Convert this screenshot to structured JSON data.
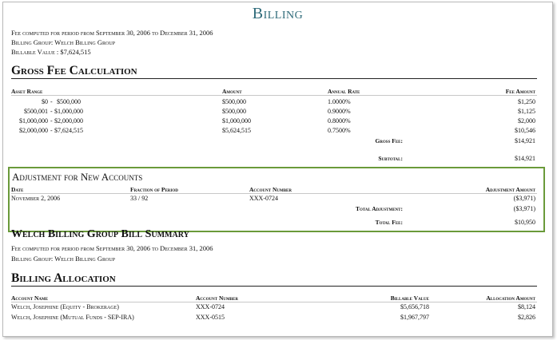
{
  "title": "Billing",
  "header_info": {
    "period": "Fee computed for period from September 30, 2006 to December 31, 2006",
    "group": "Billing Group: Welch Billing Group",
    "billable_value": "Billable Value : $7,624,515"
  },
  "gross": {
    "heading": "Gross Fee Calculation",
    "columns": [
      "Asset Range",
      "Amount",
      "Annual Rate",
      "Fee Amount"
    ],
    "rows": [
      {
        "range_from": "$0",
        "range_dash": "-",
        "range_to": "$500,000",
        "amount": "$500,000",
        "rate": "1.0000%",
        "fee": "$1,250"
      },
      {
        "range_from": "$500,001",
        "range_dash": "-",
        "range_to": "$1,000,000",
        "amount": "$500,000",
        "rate": "0.9000%",
        "fee": "$1,125"
      },
      {
        "range_from": "$1,000,000",
        "range_dash": "-",
        "range_to": "$2,000,000",
        "amount": "$1,000,000",
        "rate": "0.8000%",
        "fee": "$2,000"
      },
      {
        "range_from": "$2,000,000",
        "range_dash": "-",
        "range_to": "$7,624,515",
        "amount": "$5,624,515",
        "rate": "0.7500%",
        "fee": "$10,546"
      }
    ],
    "gross_fee_label": "Gross Fee:",
    "gross_fee_value": "$14,921",
    "subtotal_label": "Subtotal:",
    "subtotal_value": "$14,921"
  },
  "adjustment": {
    "heading": "Adjustment for New Accounts",
    "columns": [
      "Date",
      "Fraction of Period",
      "Account Number",
      "Adjustment Amount"
    ],
    "row": {
      "date": "November 2, 2006",
      "fraction": "33 / 92",
      "account": "XXX-0724",
      "amount": "($3,971)"
    },
    "total_adj_label": "Total Adjustment:",
    "total_adj_value": "($3,971)",
    "total_fee_label": "Total Fee:",
    "total_fee_value": "$10,950"
  },
  "summary": {
    "heading": "Welch Billing Group Bill Summary",
    "period": "Fee computed for period from September 30, 2006 to December 31, 2006",
    "group": "Billing Group: Welch Billing Group"
  },
  "allocation": {
    "heading": "Billing Allocation",
    "columns": [
      "Account Name",
      "Account Number",
      "Billable Value",
      "Allocation Amount"
    ],
    "rows": [
      {
        "name": "Welch, Josephine (Equity - Brokerage)",
        "account": "XXX-0724",
        "value": "$5,656,718",
        "amount": "$8,124"
      },
      {
        "name": "Welch, Josephine (Mutual Funds - SEP-IRA)",
        "account": "XXX-0515",
        "value": "$1,967,797",
        "amount": "$2,826"
      }
    ]
  }
}
